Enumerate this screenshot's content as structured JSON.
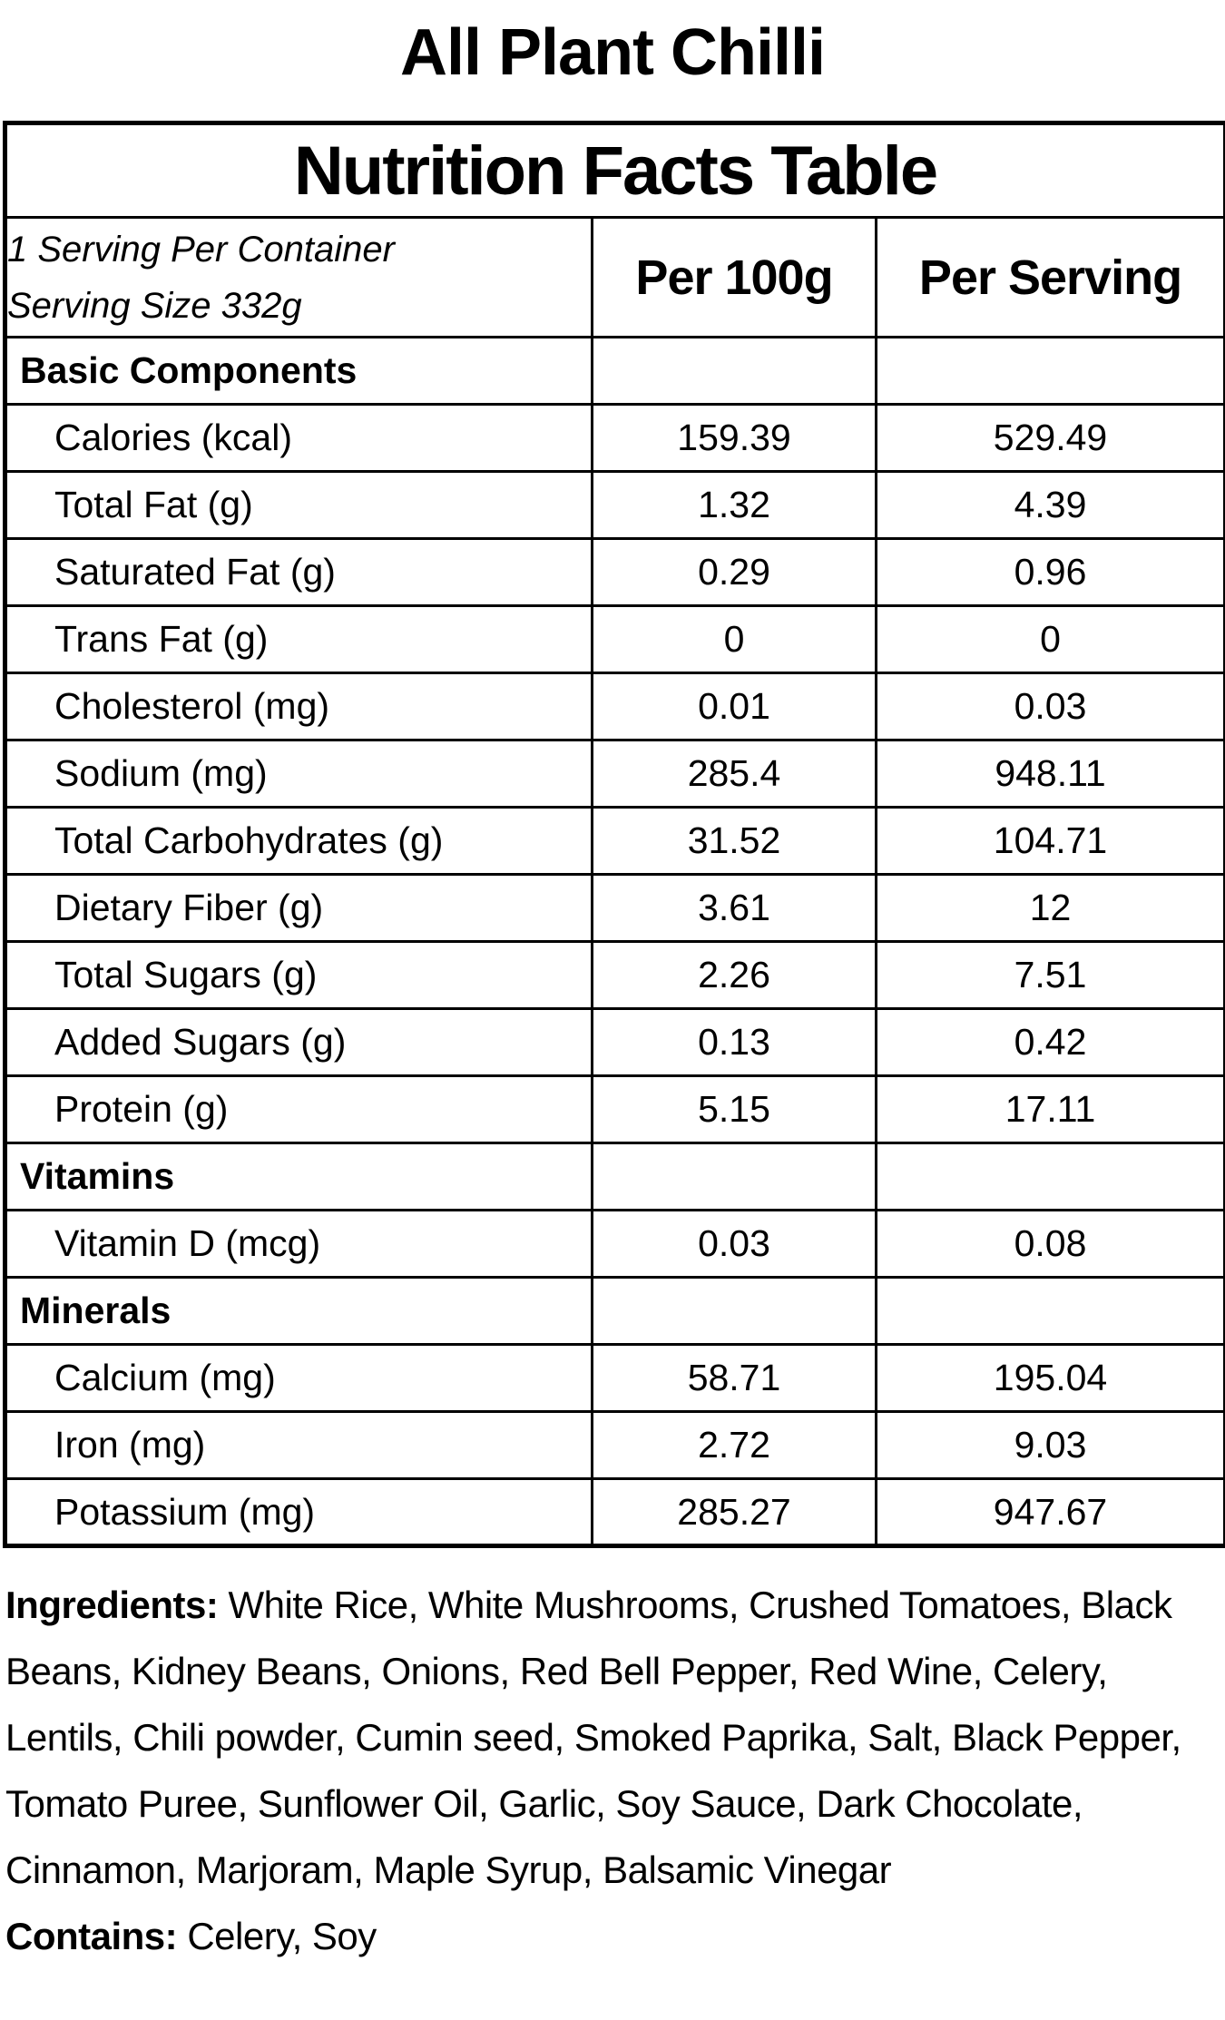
{
  "page": {
    "title": "All Plant Chilli"
  },
  "table": {
    "header": "Nutrition Facts Table",
    "serving_info": {
      "line1": "1 Serving Per Container",
      "line2": "Serving Size 332g"
    },
    "columns": [
      "Per 100g",
      "Per Serving"
    ],
    "rows": [
      {
        "type": "section",
        "label": "Basic Components",
        "per_100g": "",
        "per_serving": ""
      },
      {
        "type": "nutrient",
        "label": "Calories (kcal)",
        "per_100g": "159.39",
        "per_serving": "529.49"
      },
      {
        "type": "nutrient",
        "label": "Total Fat (g)",
        "per_100g": "1.32",
        "per_serving": "4.39"
      },
      {
        "type": "nutrient",
        "label": "Saturated Fat (g)",
        "per_100g": "0.29",
        "per_serving": "0.96"
      },
      {
        "type": "nutrient",
        "label": "Trans Fat (g)",
        "per_100g": "0",
        "per_serving": "0"
      },
      {
        "type": "nutrient",
        "label": "Cholesterol (mg)",
        "per_100g": "0.01",
        "per_serving": "0.03"
      },
      {
        "type": "nutrient",
        "label": "Sodium (mg)",
        "per_100g": "285.4",
        "per_serving": "948.11"
      },
      {
        "type": "nutrient",
        "label": "Total Carbohydrates (g)",
        "per_100g": "31.52",
        "per_serving": "104.71"
      },
      {
        "type": "nutrient",
        "label": "Dietary Fiber (g)",
        "per_100g": "3.61",
        "per_serving": "12"
      },
      {
        "type": "nutrient",
        "label": "Total Sugars (g)",
        "per_100g": "2.26",
        "per_serving": "7.51"
      },
      {
        "type": "nutrient",
        "label": "Added Sugars (g)",
        "per_100g": "0.13",
        "per_serving": "0.42"
      },
      {
        "type": "nutrient",
        "label": "Protein (g)",
        "per_100g": "5.15",
        "per_serving": "17.11"
      },
      {
        "type": "section",
        "label": "Vitamins",
        "per_100g": "",
        "per_serving": ""
      },
      {
        "type": "nutrient",
        "label": "Vitamin D (mcg)",
        "per_100g": "0.03",
        "per_serving": "0.08"
      },
      {
        "type": "section",
        "label": "Minerals",
        "per_100g": "",
        "per_serving": ""
      },
      {
        "type": "nutrient",
        "label": "Calcium (mg)",
        "per_100g": "58.71",
        "per_serving": "195.04"
      },
      {
        "type": "nutrient",
        "label": "Iron (mg)",
        "per_100g": "2.72",
        "per_serving": "9.03"
      },
      {
        "type": "nutrient",
        "label": "Potassium (mg)",
        "per_100g": "285.27",
        "per_serving": "947.67"
      }
    ]
  },
  "ingredients": {
    "label": "Ingredients:",
    "text": " White Rice, White Mushrooms, Crushed Tomatoes, Black Beans, Kidney Beans, Onions, Red Bell Pepper, Red Wine, Celery, Lentils, Chili powder, Cumin seed, Smoked Paprika, Salt, Black Pepper, Tomato Puree, Sunflower Oil, Garlic, Soy Sauce, Dark Chocolate, Cinnamon, Marjoram, Maple Syrup, Balsamic Vinegar"
  },
  "contains": {
    "label": "Contains:",
    "text": " Celery, Soy"
  },
  "colors": {
    "text": "#000000",
    "background": "#ffffff",
    "border": "#000000"
  }
}
